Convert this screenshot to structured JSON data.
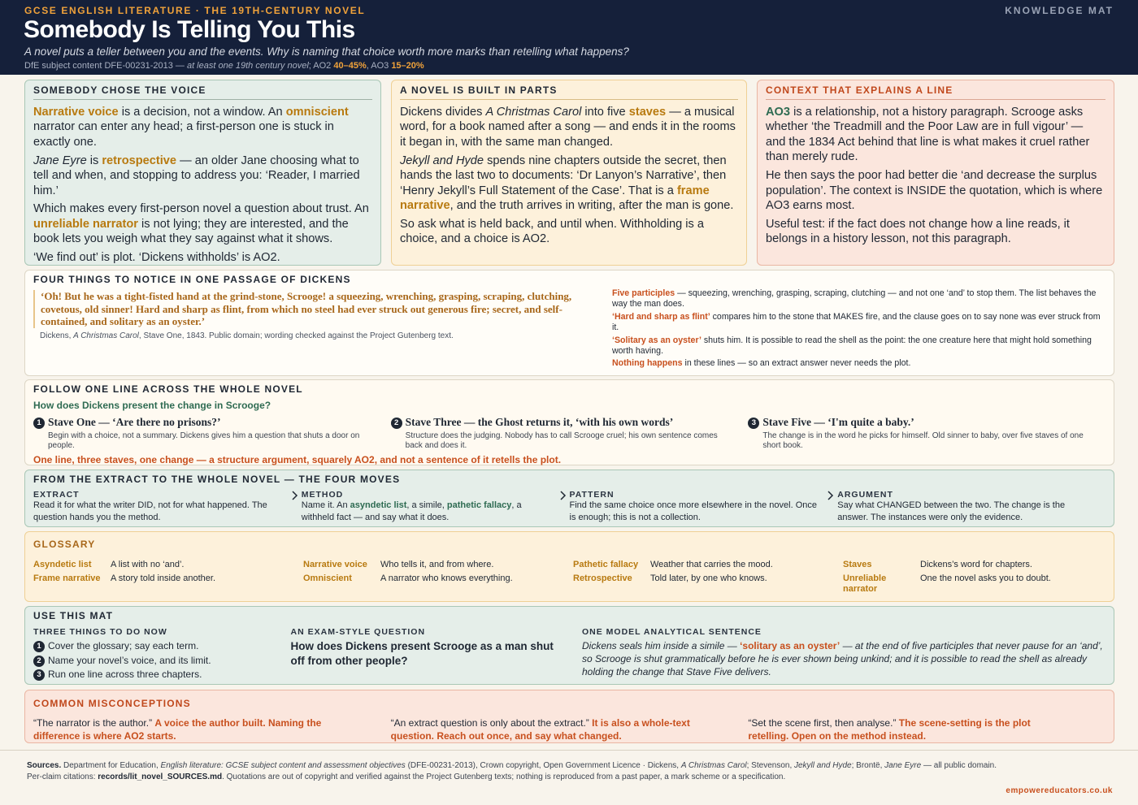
{
  "header": {
    "kicker": "GCSE ENGLISH LITERATURE · THE 19TH-CENTURY NOVEL",
    "badge": "KNOWLEDGE MAT",
    "title": "Somebody Is Telling You This",
    "subtitle": "A novel puts a teller between you and the events. Why is naming that choice worth more marks than retelling what happens?",
    "spec": [
      "DfE subject content DFE-00231-2013 — ",
      {
        "i": "at least one 19th century novel"
      },
      "; AO2 ",
      {
        "b": "40–45%"
      },
      ", AO3 ",
      {
        "b": "15–20%"
      }
    ]
  },
  "voice": {
    "heading": "SOMEBODY CHOSE THE VOICE",
    "paragraphs": [
      [
        {
          "b": "Narrative voice"
        },
        " is a decision, not a window. An ",
        {
          "b": "omniscient"
        },
        " narrator can enter any head; a first-person one is stuck in exactly one."
      ],
      [
        {
          "i": "Jane Eyre"
        },
        " is ",
        {
          "b": "retrospective"
        },
        " — an older Jane choosing what to tell and when, and stopping to address you: ‘Reader, I married him.’"
      ],
      [
        "Which makes every first-person novel a question about trust. An ",
        {
          "b": "unreliable narrator"
        },
        " is not lying; they are interested, and the book lets you weigh what they say against what it shows."
      ],
      [
        "‘We find out’ is plot. ‘Dickens withholds’ is AO2."
      ]
    ]
  },
  "parts": {
    "heading": "A NOVEL IS BUILT IN PARTS",
    "paragraphs": [
      [
        "Dickens divides ",
        {
          "i": "A Christmas Carol"
        },
        " into five ",
        {
          "b": "staves"
        },
        " — a musical word, for a book named after a song — and ends it in the rooms it began in, with the same man changed."
      ],
      [
        {
          "i": "Jekyll and Hyde"
        },
        " spends nine chapters outside the secret, then hands the last two to documents: ‘Dr Lanyon’s Narrative’, then ‘Henry Jekyll’s Full Statement of the Case’. That is a ",
        {
          "b": "frame narrative"
        },
        ", and the truth arrives in writing, after the man is gone."
      ],
      [
        "So ask what is held back, and until when. Withholding is a choice, and a choice is AO2."
      ]
    ]
  },
  "context": {
    "heading": "CONTEXT THAT EXPLAINS A LINE",
    "paragraphs": [
      [
        {
          "b": "AO3"
        },
        " is a relationship, not a history paragraph. Scrooge asks whether ‘the Treadmill and the Poor Law are in full vigour’ — and the 1834 Act behind that line is what makes it cruel rather than merely rude."
      ],
      [
        "He then says the poor had better die ‘and decrease the surplus population’. The context is INSIDE the quotation, which is where AO3 earns most."
      ],
      [
        "Useful test: if the fact does not change how a line reads, it belongs in a history lesson, not this paragraph."
      ]
    ]
  },
  "passage": {
    "heading": "FOUR THINGS TO NOTICE IN ONE PASSAGE OF DICKENS",
    "quote": "‘Oh! But he was a tight-fisted hand at the grind-stone, Scrooge! a squeezing, wrenching, grasping, scraping, clutching, covetous, old sinner! Hard and sharp as flint, from which no steel had ever struck out generous fire; secret, and self-contained, and solitary as an oyster.’",
    "citation": [
      "Dickens, ",
      {
        "i": "A Christmas Carol"
      },
      ", Stave One, 1843. Public domain; wording checked against the Project Gutenberg text."
    ],
    "notes": [
      [
        {
          "b": "Five participles"
        },
        " — squeezing, wrenching, grasping, scraping, clutching — and not one ‘and’ to stop them. The list behaves the way the man does."
      ],
      [
        {
          "b": "‘Hard and sharp as flint’"
        },
        " compares him to the stone that MAKES fire, and the clause goes on to say none was ever struck from it."
      ],
      [
        {
          "b": "‘Solitary as an oyster’"
        },
        " shuts him. It is possible to read the shell as the point: the one creature here that might hold something worth having."
      ],
      [
        {
          "b": "Nothing happens"
        },
        " in these lines — so an extract answer never needs the plot."
      ]
    ]
  },
  "follow": {
    "heading": "FOLLOW ONE LINE ACROSS THE WHOLE NOVEL",
    "question": "How does Dickens present the change in Scrooge?",
    "steps": [
      {
        "number": "1",
        "title": "Stave One — ‘Are there no prisons?’",
        "text": "Begin with a choice, not a summary. Dickens gives him a question that shuts a door on people."
      },
      {
        "number": "2",
        "title": "Stave Three — the Ghost returns it, ‘with his own words’",
        "text": "Structure does the judging. Nobody has to call Scrooge cruel; his own sentence comes back and does it."
      },
      {
        "number": "3",
        "title": "Stave Five — ‘I'm quite a baby.’",
        "text": "The change is in the word he picks for himself. Old sinner to baby, over five staves of one short book."
      }
    ],
    "conclusion": "One line, three staves, one change — a structure argument, squarely AO2, and not a sentence of it retells the plot."
  },
  "moves": {
    "heading": "FROM THE EXTRACT TO THE WHOLE NOVEL — THE FOUR MOVES",
    "items": [
      {
        "label": "EXTRACT",
        "text": [
          "Read it for what the writer DID, not for what happened. The question hands you the method."
        ]
      },
      {
        "label": "METHOD",
        "text": [
          "Name it. An ",
          {
            "b": "asyndetic list"
          },
          ", a simile, ",
          {
            "b": "pathetic fallacy"
          },
          ", a withheld fact — and say what it does."
        ]
      },
      {
        "label": "PATTERN",
        "text": [
          "Find the same choice once more elsewhere in the novel. Once is enough; this is not a collection."
        ]
      },
      {
        "label": "ARGUMENT",
        "text": [
          "Say what CHANGED between the two. The change is the answer. The instances were only the evidence."
        ]
      }
    ]
  },
  "glossary": {
    "heading": "GLOSSARY",
    "terms": [
      {
        "term": "Asyndetic list",
        "definition": "A list with no ‘and’."
      },
      {
        "term": "Frame narrative",
        "definition": "A story told inside another."
      },
      {
        "term": "Narrative voice",
        "definition": "Who tells it, and from where."
      },
      {
        "term": "Omniscient",
        "definition": "A narrator who knows everything."
      },
      {
        "term": "Pathetic fallacy",
        "definition": "Weather that carries the mood."
      },
      {
        "term": "Retrospective",
        "definition": "Told later, by one who knows."
      },
      {
        "term": "Staves",
        "definition": "Dickens’s word for chapters."
      },
      {
        "term": "Unreliable narrator",
        "definition": "One the novel asks you to doubt."
      }
    ]
  },
  "use": {
    "heading": "USE THIS MAT",
    "todo": {
      "heading": "THREE THINGS TO DO NOW",
      "items": [
        {
          "number": "1",
          "text": "Cover the glossary; say each term."
        },
        {
          "number": "2",
          "text": "Name your novel’s voice, and its limit."
        },
        {
          "number": "3",
          "text": "Run one line across three chapters."
        }
      ]
    },
    "question": {
      "heading": "AN EXAM-STYLE QUESTION",
      "text": "How does Dickens present Scrooge as a man shut off from other people?"
    },
    "model": {
      "heading": "ONE MODEL ANALYTICAL SENTENCE",
      "text": [
        "Dickens seals him inside a simile — ",
        {
          "b": "‘solitary as an oyster’"
        },
        " — at the end of five participles that never pause for an ‘and’, so Scrooge is shut grammatically before he is ever shown being unkind; and it is possible to read the shell as already holding the change that Stave Five delivers."
      ]
    }
  },
  "misconceptions": {
    "heading": "COMMON MISCONCEPTIONS",
    "items": [
      {
        "claim": "“The narrator is the author.”",
        "correction": "A voice the author built. Naming the difference is where AO2 starts."
      },
      {
        "claim": "“An extract question is only about the extract.”",
        "correction": "It is also a whole-text question. Reach out once, and say what changed."
      },
      {
        "claim": "“Set the scene first, then analyse.”",
        "correction": "The scene-setting is the plot retelling. Open on the method instead."
      }
    ]
  },
  "footer": {
    "sources": [
      {
        "b": "Sources."
      },
      " Department for Education, ",
      {
        "i": "English literature: GCSE subject content and assessment objectives"
      },
      " (DFE-00231-2013), Crown copyright, Open Government Licence · Dickens, ",
      {
        "i": "A Christmas Carol"
      },
      "; Stevenson, ",
      {
        "i": "Jekyll and Hyde"
      },
      "; Brontë, ",
      {
        "i": "Jane Eyre"
      },
      " — all public domain. Per-claim citations: ",
      {
        "b": "records/lit_novel_SOURCES.md"
      },
      ". Quotations are out of copyright and verified against the Project Gutenberg texts; nothing is reproduced from a past paper, a mark scheme or a specification."
    ],
    "site": "empowereducators.co.uk"
  }
}
